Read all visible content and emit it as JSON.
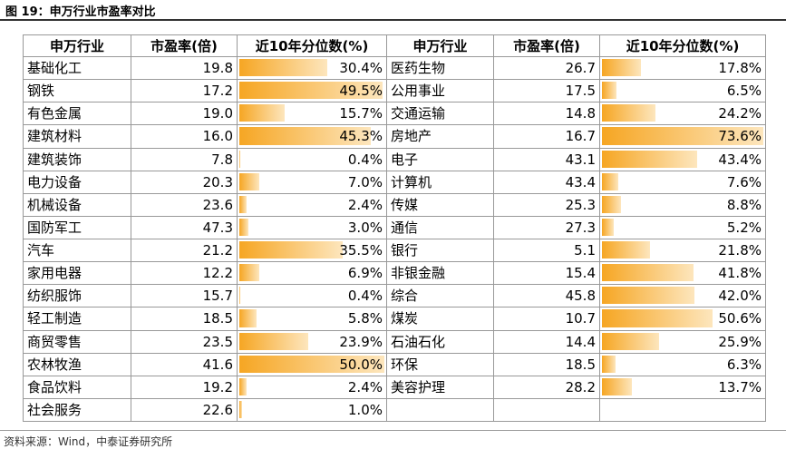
{
  "title": "图 19：申万行业市盈率对比",
  "table": {
    "columns": [
      "申万行业",
      "市盈率(倍)",
      "近10年分位数(%)",
      "申万行业",
      "市盈率(倍)",
      "近10年分位数(%)"
    ],
    "rows": [
      [
        "基础化工",
        "19.8",
        "30.4%",
        "医药生物",
        "26.7",
        "17.8%"
      ],
      [
        "钢铁",
        "17.2",
        "49.5%",
        "公用事业",
        "17.5",
        "6.5%"
      ],
      [
        "有色金属",
        "19.0",
        "15.7%",
        "交通运输",
        "14.8",
        "24.2%"
      ],
      [
        "建筑材料",
        "16.0",
        "45.3%",
        "房地产",
        "16.7",
        "73.6%"
      ],
      [
        "建筑装饰",
        "7.8",
        "0.4%",
        "电子",
        "43.1",
        "43.4%"
      ],
      [
        "电力设备",
        "20.3",
        "7.0%",
        "计算机",
        "43.4",
        "7.6%"
      ],
      [
        "机械设备",
        "23.6",
        "2.4%",
        "传媒",
        "25.3",
        "8.8%"
      ],
      [
        "国防军工",
        "47.3",
        "3.0%",
        "通信",
        "27.3",
        "5.2%"
      ],
      [
        "汽车",
        "21.2",
        "35.5%",
        "银行",
        "5.1",
        "21.8%"
      ],
      [
        "家用电器",
        "12.2",
        "6.9%",
        "非银金融",
        "15.4",
        "41.8%"
      ],
      [
        "纺织服饰",
        "15.7",
        "0.4%",
        "综合",
        "45.8",
        "42.0%"
      ],
      [
        "轻工制造",
        "18.5",
        "5.8%",
        "煤炭",
        "10.7",
        "50.6%"
      ],
      [
        "商贸零售",
        "23.5",
        "23.9%",
        "石油石化",
        "14.4",
        "25.9%"
      ],
      [
        "农林牧渔",
        "41.6",
        "50.0%",
        "环保",
        "18.5",
        "6.3%"
      ],
      [
        "食品饮料",
        "19.2",
        "2.4%",
        "美容护理",
        "28.2",
        "13.7%"
      ],
      [
        "社会服务",
        "22.6",
        "1.0%"
      ]
    ]
  },
  "source": "资料来源：Wind，中泰证券研究所"
}
